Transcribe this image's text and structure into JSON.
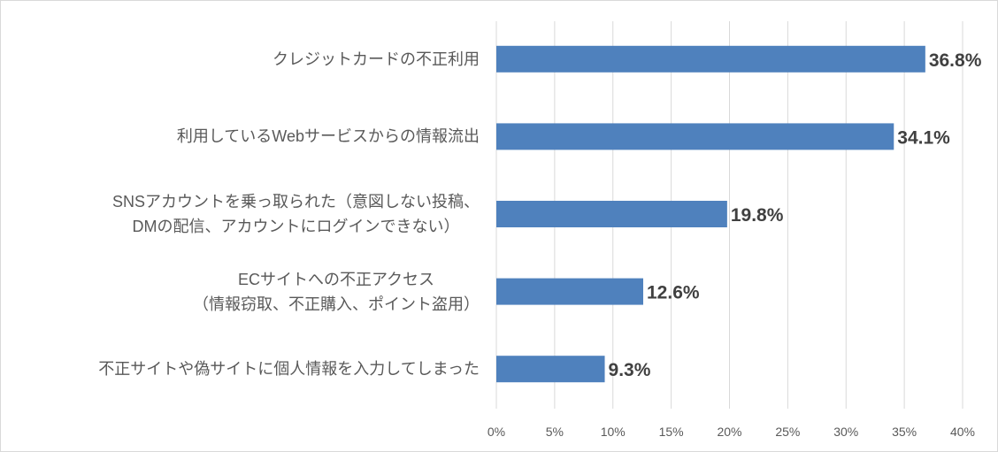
{
  "chart_data": {
    "type": "bar",
    "orientation": "horizontal",
    "categories": [
      [
        "クレジットカードの不正利用"
      ],
      [
        "利用しているWebサービスからの情報流出"
      ],
      [
        "SNSアカウントを乗っ取られた（意図しない投稿、",
        "DMの配信、アカウントにログインできない）"
      ],
      [
        "ECサイトへの不正アクセス",
        "（情報窃取、不正購入、ポイント盗用）"
      ],
      [
        "不正サイトや偽サイトに個人情報を入力してしまった"
      ]
    ],
    "values": [
      36.8,
      34.1,
      19.8,
      12.6,
      9.3
    ],
    "data_labels": [
      "36.8%",
      "34.1%",
      "19.8%",
      "12.6%",
      "9.3%"
    ],
    "xlim": [
      0,
      40
    ],
    "xticks": [
      0,
      5,
      10,
      15,
      20,
      25,
      30,
      35,
      40
    ],
    "xtick_labels": [
      "0%",
      "5%",
      "10%",
      "15%",
      "20%",
      "25%",
      "30%",
      "35%",
      "40%"
    ],
    "grid": true,
    "bar_color": "#4F81BD",
    "title": "",
    "xlabel": "",
    "ylabel": ""
  }
}
